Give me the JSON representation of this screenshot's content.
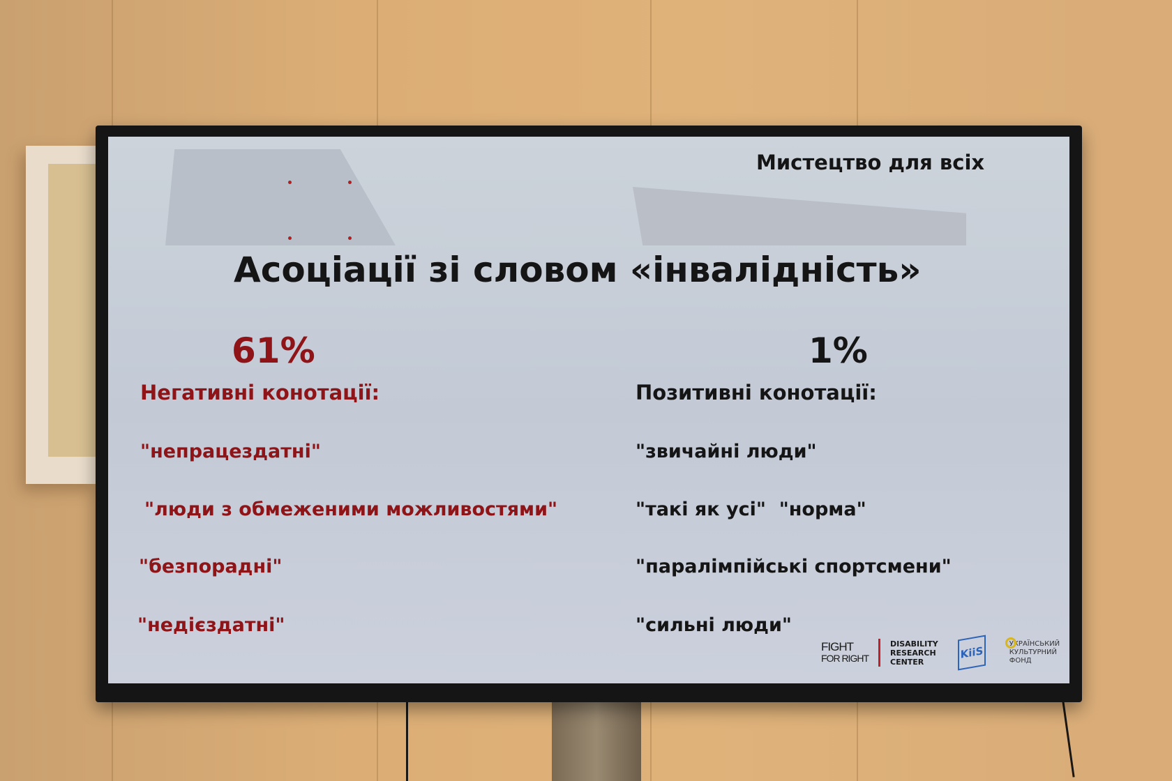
{
  "slide": {
    "header": "Мистецтво для всіх",
    "title": "Асоціації зі словом «інвалідність»",
    "negative": {
      "percent": "61%",
      "heading": "Негативні конотації:",
      "items": [
        "\"непрацездатні\"",
        "\"люди з обмеженими можливостями\"",
        "\"безпорадні\"",
        "\"недієздатні\""
      ]
    },
    "positive": {
      "percent": "1%",
      "heading": "Позитивні конотації:",
      "items": [
        "\"звичайні люди\"",
        "\"такі як усі\"  \"норма\"",
        "\"паралімпійські спортсмени\"",
        "\"сильні люди\""
      ]
    },
    "logos": {
      "fight_line1": "FIGHT",
      "fight_line2": "FOR RIGHT",
      "drc_line1": "DISABILITY",
      "drc_line2": "RESEARCH",
      "drc_line3": "CENTER",
      "kis": "KiiS",
      "ukf_line1": "УКРАЇНСЬКИЙ",
      "ukf_line2": "КУЛЬТУРНИЙ",
      "ukf_line3": "ФОНД"
    }
  },
  "colors": {
    "negative": "#8e1418",
    "positive": "#151515"
  }
}
